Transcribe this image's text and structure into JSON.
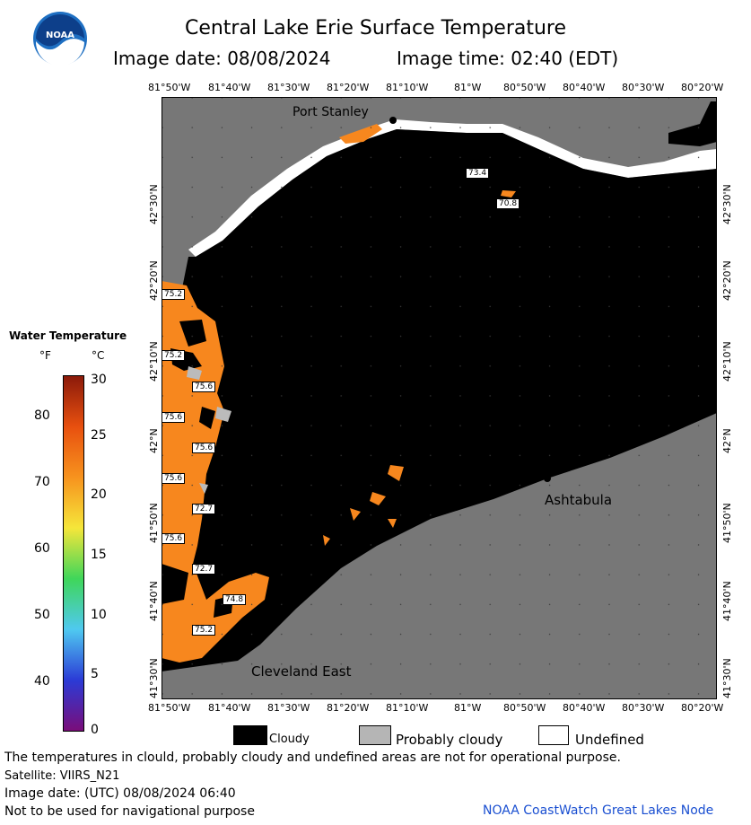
{
  "header": {
    "title": "Central Lake Erie Surface Temperature",
    "image_date": "Image date: 08/08/2024",
    "image_time": "Image time: 02:40 (EDT)",
    "logo_text": "NOAA"
  },
  "axes": {
    "top_ticks": [
      "81°50'W",
      "81°40'W",
      "81°30'W",
      "81°20'W",
      "81°10'W",
      "81°W",
      "80°50'W",
      "80°40'W",
      "80°30'W",
      "80°20'W"
    ],
    "bottom_ticks": [
      "81°50'W",
      "81°40'W",
      "81°30'W",
      "81°20'W",
      "81°10'W",
      "81°W",
      "80°50'W",
      "80°40'W",
      "80°30'W",
      "80°20'W"
    ],
    "left_ticks": [
      "42°30'N",
      "42°20'N",
      "42°10'N",
      "42°N",
      "41°50'N",
      "41°40'N",
      "41°30'N"
    ],
    "right_ticks": [
      "42°30'N",
      "42°20'N",
      "42°10'N",
      "42°N",
      "41°50'N",
      "41°40'N",
      "41°30'N"
    ]
  },
  "places": {
    "port_stanley": "Port Stanley",
    "ashtabula": "Ashtabula",
    "cleveland_east": "Cleveland East"
  },
  "temp_labels": [
    "73.4",
    "70.8",
    "75.2",
    "75.2",
    "75.6",
    "75.6",
    "75.6",
    "75.6",
    "72.7",
    "75.6",
    "72.7",
    "74.8",
    "75.2"
  ],
  "legend": {
    "title": "Water Temperature",
    "unit_f": "°F",
    "unit_c": "°C",
    "f_ticks": [
      "80",
      "70",
      "60",
      "50",
      "40"
    ],
    "c_ticks": [
      "30",
      "25",
      "20",
      "15",
      "10",
      "5",
      "0"
    ],
    "colors": [
      "#7a0d7a",
      "#2b3bd6",
      "#4fc9f0",
      "#3fd65a",
      "#f5e63a",
      "#f7931e",
      "#e8500f",
      "#8b1a0a"
    ]
  },
  "key": {
    "cloudy": "Cloudy",
    "probably_cloudy": "Probably cloudy",
    "undefined": "Undefined"
  },
  "footer": {
    "disclaimer": "The temperatures in clould, probably cloudy and undefined areas are not for operational purpose.",
    "satellite": "Satellite: VIIRS_N21",
    "utc_date": "Image date: (UTC) 08/08/2024  06:40",
    "nav": "Not to be used for navigational purpose",
    "credit": "NOAA CoastWatch Great Lakes Node"
  }
}
